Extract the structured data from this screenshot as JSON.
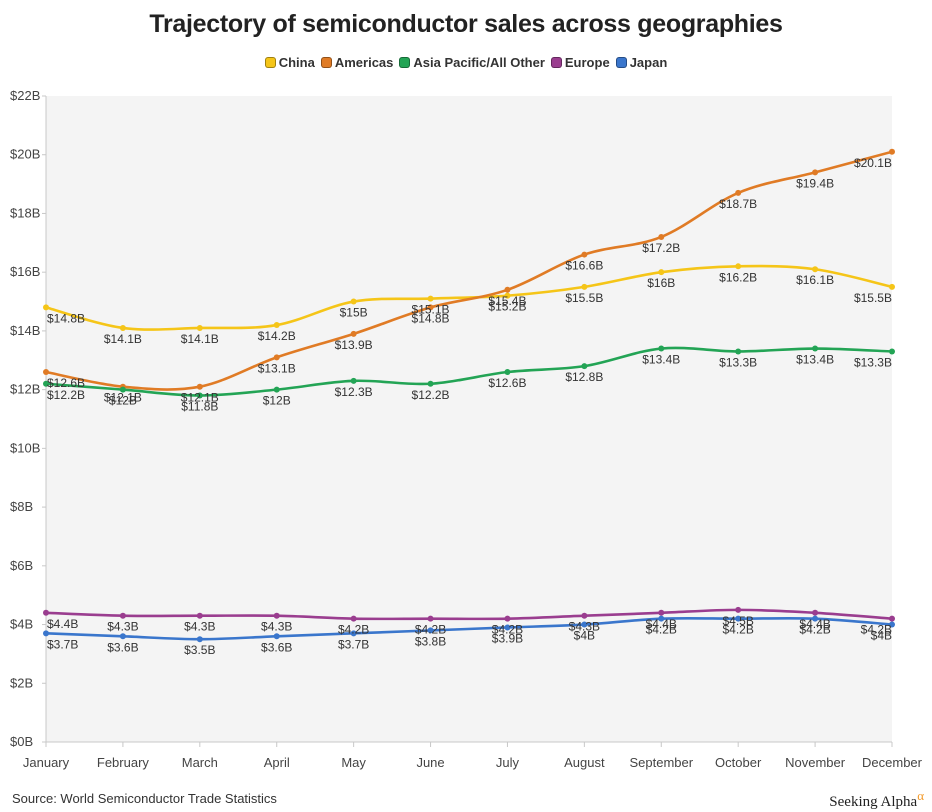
{
  "chart_data": {
    "type": "line",
    "title": "Trajectory of semiconductor sales across geographies",
    "x": [
      "January",
      "February",
      "March",
      "April",
      "May",
      "June",
      "July",
      "August",
      "September",
      "October",
      "November",
      "December"
    ],
    "y_ticks": [
      "$0B",
      "$2B",
      "$4B",
      "$6B",
      "$8B",
      "$10B",
      "$12B",
      "$14B",
      "$16B",
      "$18B",
      "$20B",
      "$22B"
    ],
    "ylim": [
      0,
      22
    ],
    "legend_position": "top-center",
    "grid": false,
    "series": [
      {
        "name": "China",
        "color": "#f5c518",
        "values": [
          14.8,
          14.1,
          14.1,
          14.2,
          15,
          15.1,
          15.2,
          15.5,
          16,
          16.2,
          16.1,
          15.5
        ],
        "labels": [
          "$14.8B",
          "$14.1B",
          "$14.1B",
          "$14.2B",
          "$15B",
          "$15.1B",
          "$15.2B",
          "$15.5B",
          "$16B",
          "$16.2B",
          "$16.1B",
          "$15.5B"
        ]
      },
      {
        "name": "Americas",
        "color": "#e07b25",
        "values": [
          12.6,
          12.1,
          12.1,
          13.1,
          13.9,
          14.8,
          15.4,
          16.6,
          17.2,
          18.7,
          19.4,
          20.1
        ],
        "labels": [
          "$12.6B",
          "$12.1B",
          "$12.1B",
          "$13.1B",
          "$13.9B",
          "$14.8B",
          "$15.4B",
          "$16.6B",
          "$17.2B",
          "$18.7B",
          "$19.4B",
          "$20.1B"
        ]
      },
      {
        "name": "Asia Pacific/All Other",
        "color": "#23a455",
        "values": [
          12.2,
          12,
          11.8,
          12,
          12.3,
          12.2,
          12.6,
          12.8,
          13.4,
          13.3,
          13.4,
          13.3
        ],
        "labels": [
          "$12.2B",
          "$12B",
          "$11.8B",
          "$12B",
          "$12.3B",
          "$12.2B",
          "$12.6B",
          "$12.8B",
          "$13.4B",
          "$13.3B",
          "$13.4B",
          "$13.3B"
        ]
      },
      {
        "name": "Europe",
        "color": "#9a3d8f",
        "values": [
          4.4,
          4.3,
          4.3,
          4.3,
          4.2,
          4.2,
          4.2,
          4.3,
          4.4,
          4.5,
          4.4,
          4.2
        ],
        "labels": [
          "$4.4B",
          "$4.3B",
          "$4.3B",
          "$4.3B",
          "$4.2B",
          "$4.2B",
          "$4.2B",
          "$4.3B",
          "$4.4B",
          "$4.5B",
          "$4.4B",
          "$4.2B"
        ]
      },
      {
        "name": "Japan",
        "color": "#3a76cc",
        "values": [
          3.7,
          3.6,
          3.5,
          3.6,
          3.7,
          3.8,
          3.9,
          4,
          4.2,
          4.2,
          4.2,
          4
        ],
        "labels": [
          "$3.7B",
          "$3.6B",
          "$3.5B",
          "$3.6B",
          "$3.7B",
          "$3.8B",
          "$3.9B",
          "$4B",
          "$4.2B",
          "$4.2B",
          "$4.2B",
          "$4B"
        ]
      }
    ]
  },
  "footer": {
    "source": "Source: World Semiconductor Trade Statistics",
    "brand": "Seeking Alpha",
    "brand_mark": "α"
  }
}
